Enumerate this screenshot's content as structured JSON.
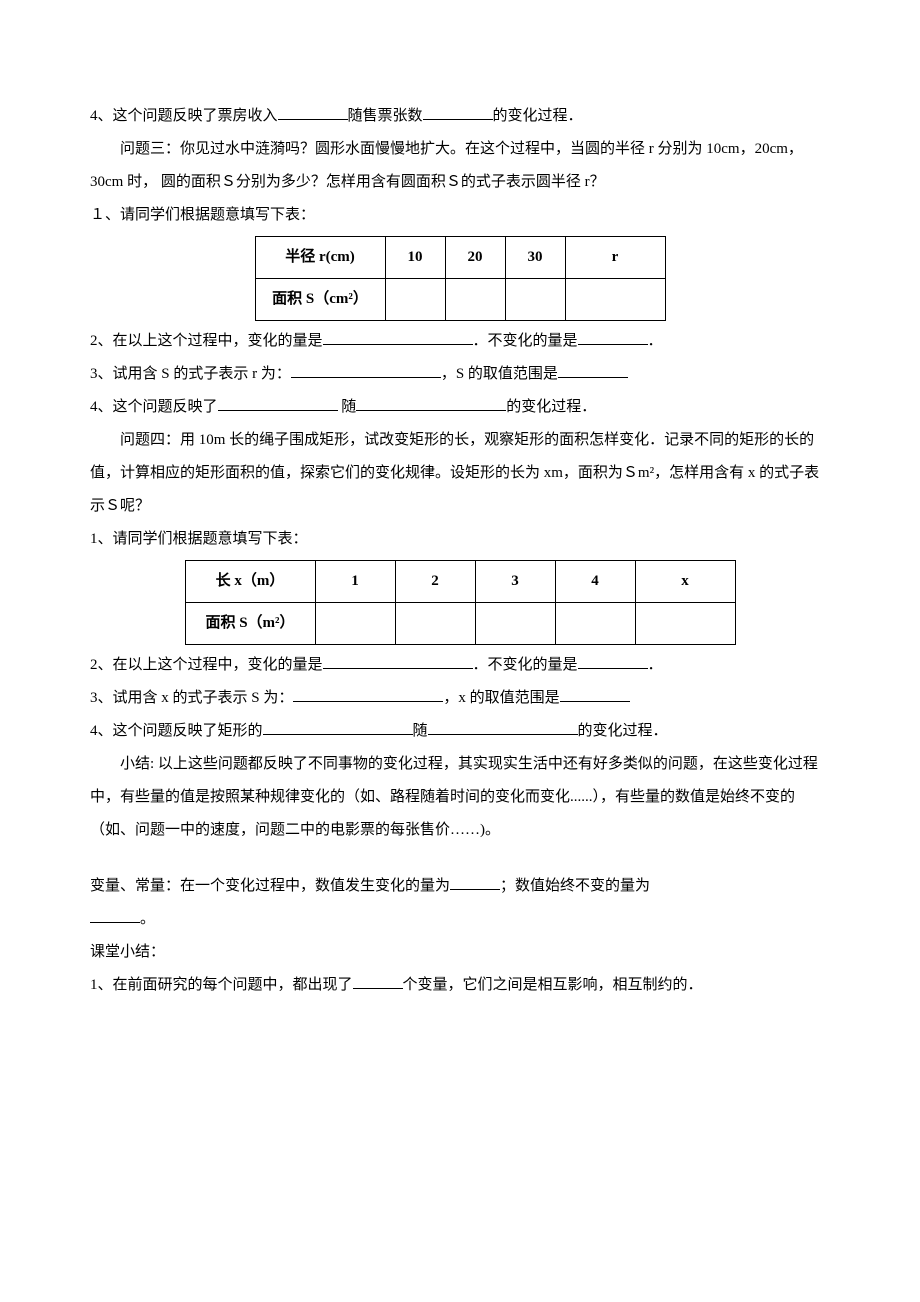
{
  "q4a": {
    "prefix": "4、这个问题反映了票房收入",
    "mid": "随售票张数",
    "suffix": "的变化过程．"
  },
  "problem3": {
    "title": "问题三：你见过水中涟漪吗？圆形水面慢慢地扩大。在这个过程中，当圆的半径 r 分别为 10cm，20cm，30cm 时， 圆的面积Ｓ分别为多少？怎样用含有圆面积Ｓ的式子表示圆半径 r？",
    "line1": "１、请同学们根据题意填写下表：",
    "table": {
      "h1": "半径 r(cm)",
      "h2": "10",
      "h3": "20",
      "h4": "30",
      "h5": "r",
      "r1": "面积 S（cm²）"
    },
    "line2a": "2、在以上这个过程中，变化的量是",
    "line2b": "．不变化的量是",
    "line2c": "．",
    "line3a": "3、试用含 S 的式子表示 r 为：",
    "line3b": "，S 的取值范围是",
    "line4a": "4、这个问题反映了",
    "line4b": " 随",
    "line4c": "的变化过程．"
  },
  "problem4": {
    "title": "问题四：用 10m 长的绳子围成矩形，试改变矩形的长，观察矩形的面积怎样变化．记录不同的矩形的长的值，计算相应的矩形面积的值，探索它们的变化规律。设矩形的长为 xm，面积为Ｓm²，怎样用含有 x 的式子表示Ｓ呢？",
    "line1": "1、请同学们根据题意填写下表：",
    "table": {
      "h1": "长 x（m）",
      "h2": "1",
      "h3": "2",
      "h4": "3",
      "h5": "4",
      "h6": "x",
      "r1": "面积 S（m²）"
    },
    "line2a": "2、在以上这个过程中，变化的量是",
    "line2b": "．不变化的量是",
    "line2c": "．",
    "line3a": "3、试用含 x 的式子表示 S 为：",
    "line3b": "，x 的取值范围是",
    "line4a": "4、这个问题反映了矩形的",
    "line4b": "随",
    "line4c": "的变化过程．"
  },
  "summary1": "小结: 以上这些问题都反映了不同事物的变化过程，其实现实生活中还有好多类似的问题，在这些变化过程中，有些量的值是按照某种规律变化的（如、路程随着时间的变化而变化......），有些量的数值是始终不变的（如、问题一中的速度，问题二中的电影票的每张售价……)。",
  "defn": {
    "a": "变量、常量：在一个变化过程中，数值发生变化的量为",
    "b": "；数值始终不变的量为",
    "c": "。"
  },
  "summary2": {
    "title": "课堂小结：",
    "a": "1、在前面研究的每个问题中，都出现了",
    "b": "个变量，它们之间是相互影响，相互制约的．"
  }
}
